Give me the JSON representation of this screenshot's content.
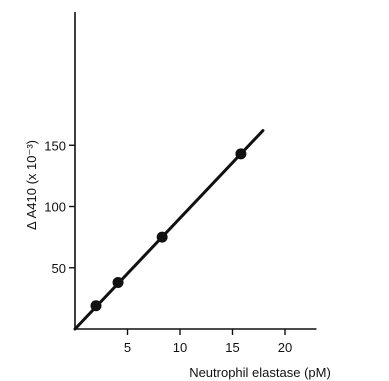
{
  "chart_data": {
    "type": "scatter",
    "title": "",
    "xlabel": "Neutrophil elastase (pM)",
    "ylabel": "Δ A410 (x 10⁻³)",
    "xlim": [
      0,
      23
    ],
    "ylim": [
      0,
      180
    ],
    "x_ticks": [
      5,
      10,
      15,
      20
    ],
    "y_ticks": [
      50,
      100,
      150
    ],
    "grid": false,
    "legend": "none",
    "points": [
      {
        "x": 2,
        "y": 19
      },
      {
        "x": 4.1,
        "y": 38
      },
      {
        "x": 8.3,
        "y": 75
      },
      {
        "x": 15.8,
        "y": 143
      }
    ],
    "fit_line": {
      "x": [
        0,
        17.9
      ],
      "y": [
        0,
        162
      ]
    },
    "colors": {
      "ink": "#111111",
      "background": "#ffffff"
    }
  }
}
